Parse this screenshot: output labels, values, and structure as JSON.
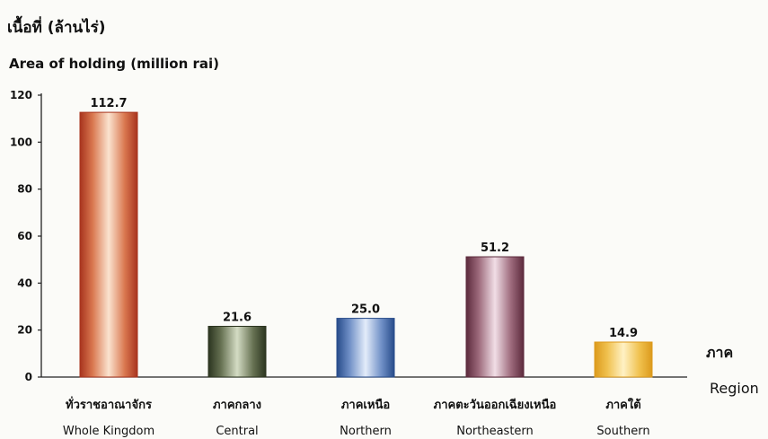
{
  "chart_data": {
    "type": "bar",
    "title_thai": "เนื้อที่ (ล้านไร่)",
    "ylabel": "Area of holding (million rai)",
    "xlabel_thai": "ภาค",
    "xlabel": "Region",
    "ylim": [
      0,
      120
    ],
    "yticks": [
      "0",
      "20",
      "40",
      "60",
      "80",
      "100",
      "120"
    ],
    "grid": false,
    "categories": [
      {
        "thai": "ทั่วราชอาณาจักร",
        "english": "Whole Kingdom"
      },
      {
        "thai": "ภาคกลาง",
        "english": "Central"
      },
      {
        "thai": "ภาคเหนือ",
        "english": "Northern"
      },
      {
        "thai": "ภาคตะวันออกเฉียงเหนือ",
        "english": "Northeastern"
      },
      {
        "thai": "ภาคใต้",
        "english": "Southern"
      }
    ],
    "values": [
      112.7,
      21.6,
      25.0,
      51.2,
      14.9
    ],
    "value_labels": [
      "112.7",
      "21.6",
      "25.0",
      "51.2",
      "14.9"
    ],
    "colors": [
      {
        "dark": "#a8341e",
        "mid": "#d9774f",
        "light": "#fbe3cf"
      },
      {
        "dark": "#2c3520",
        "mid": "#667152",
        "light": "#d4dcc4"
      },
      {
        "dark": "#274b8a",
        "mid": "#6f8fc6",
        "light": "#e3ecfa"
      },
      {
        "dark": "#5c2a3c",
        "mid": "#9d6a7c",
        "light": "#f1dee6"
      },
      {
        "dark": "#dc9a1c",
        "mid": "#f0c14e",
        "light": "#fff1c4"
      }
    ]
  }
}
